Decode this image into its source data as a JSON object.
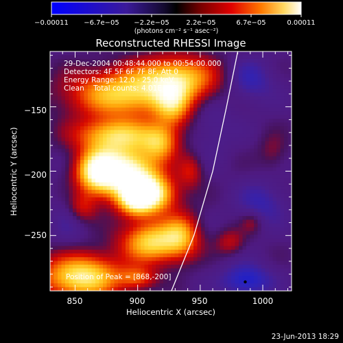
{
  "chart_data": {
    "type": "heatmap",
    "title": "Reconstructed RHESSI Image",
    "xlabel": "Heliocentric X (arcsec)",
    "ylabel": "Heliocentric Y (arcsec)",
    "xlim": [
      830,
      1023
    ],
    "ylim": [
      -293,
      -107
    ],
    "x_ticks": [
      850,
      900,
      950,
      1000
    ],
    "x_tick_labels": [
      "850",
      "900",
      "950",
      "1000"
    ],
    "y_ticks": [
      -150,
      -200,
      -250
    ],
    "y_tick_labels": [
      "−150",
      "−200",
      "−250"
    ],
    "colorbar": {
      "range": [
        -0.00011,
        0.00011
      ],
      "tick_labels": [
        "−0.00011",
        "−6.7e−05",
        "−2.2e−05",
        "2.2e−05",
        "6.7e−05",
        "0.00011"
      ],
      "units": "(photons cm⁻² s⁻¹ asec⁻²)"
    },
    "annotations": [
      "29-Dec-2004 00:48:44.000 to 00:54:00.000",
      "Detectors: 4F 5F 6F 7F 8F, Att 0",
      "Energy Range: 12.0 - 25.0 keV",
      "Clean    Total counts: 4.01E+03"
    ],
    "peak_label": "Position of Peak = [868,-200]",
    "peak_position": [
      868,
      -200
    ],
    "limb_points": [
      [
        927,
        -293
      ],
      [
        945,
        -250
      ],
      [
        960,
        -200
      ],
      [
        971,
        -150
      ],
      [
        980,
        -107
      ]
    ],
    "sources": [
      {
        "x": 893,
        "y": -201,
        "sx": 16,
        "sy": 14,
        "amp": 1.0
      },
      {
        "x": 868,
        "y": -200,
        "sx": 12,
        "sy": 12,
        "amp": 1.0
      },
      {
        "x": 912,
        "y": -218,
        "sx": 13,
        "sy": 10,
        "amp": 0.85
      },
      {
        "x": 898,
        "y": -222,
        "sx": 10,
        "sy": 9,
        "amp": 0.65
      },
      {
        "x": 882,
        "y": -172,
        "sx": 22,
        "sy": 9,
        "amp": 0.7
      },
      {
        "x": 918,
        "y": -178,
        "sx": 10,
        "sy": 10,
        "amp": 0.55
      },
      {
        "x": 912,
        "y": -255,
        "sx": 17,
        "sy": 11,
        "amp": 0.8
      },
      {
        "x": 935,
        "y": -250,
        "sx": 10,
        "sy": 12,
        "amp": 0.5
      },
      {
        "x": 888,
        "y": -140,
        "sx": 30,
        "sy": 13,
        "amp": 0.75
      },
      {
        "x": 932,
        "y": -128,
        "sx": 22,
        "sy": 12,
        "amp": 0.7
      },
      {
        "x": 928,
        "y": -150,
        "sx": 10,
        "sy": 12,
        "amp": 0.5
      },
      {
        "x": 855,
        "y": -282,
        "sx": 22,
        "sy": 12,
        "amp": 0.9
      },
      {
        "x": 900,
        "y": -283,
        "sx": 10,
        "sy": 6,
        "amp": 0.4
      },
      {
        "x": 856,
        "y": -228,
        "sx": 8,
        "sy": 8,
        "amp": 0.3
      },
      {
        "x": 942,
        "y": -200,
        "sx": 7,
        "sy": 9,
        "amp": 0.3
      },
      {
        "x": 974,
        "y": -255,
        "sx": 8,
        "sy": 7,
        "amp": 0.25
      },
      {
        "x": 991,
        "y": -240,
        "sx": 6,
        "sy": 6,
        "amp": 0.18
      },
      {
        "x": 1008,
        "y": -185,
        "sx": 8,
        "sy": 10,
        "amp": 0.15
      },
      {
        "x": 990,
        "y": -130,
        "sx": 14,
        "sy": 12,
        "amp": -0.22
      },
      {
        "x": 1000,
        "y": -225,
        "sx": 14,
        "sy": 12,
        "amp": -0.2
      },
      {
        "x": 987,
        "y": -285,
        "sx": 14,
        "sy": 9,
        "amp": -0.33
      },
      {
        "x": 960,
        "y": -165,
        "sx": 12,
        "sy": 16,
        "amp": -0.12
      },
      {
        "x": 845,
        "y": -240,
        "sx": 10,
        "sy": 20,
        "amp": -0.1
      }
    ]
  },
  "footer": {
    "timestamp": "23-Jun-2013 18:29"
  }
}
